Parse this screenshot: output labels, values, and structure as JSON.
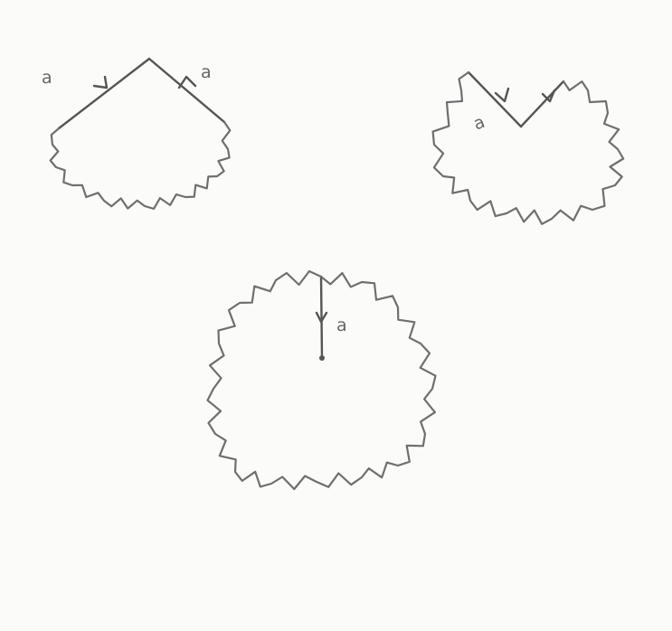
{
  "figures": [
    {
      "edge_labels": [
        "a",
        "a"
      ]
    },
    {
      "edge_labels": [
        "a"
      ]
    },
    {
      "edge_labels": [
        "a"
      ]
    }
  ],
  "colors": {
    "paper": "#fbfbfa",
    "pencil": "#6f6f6f"
  }
}
